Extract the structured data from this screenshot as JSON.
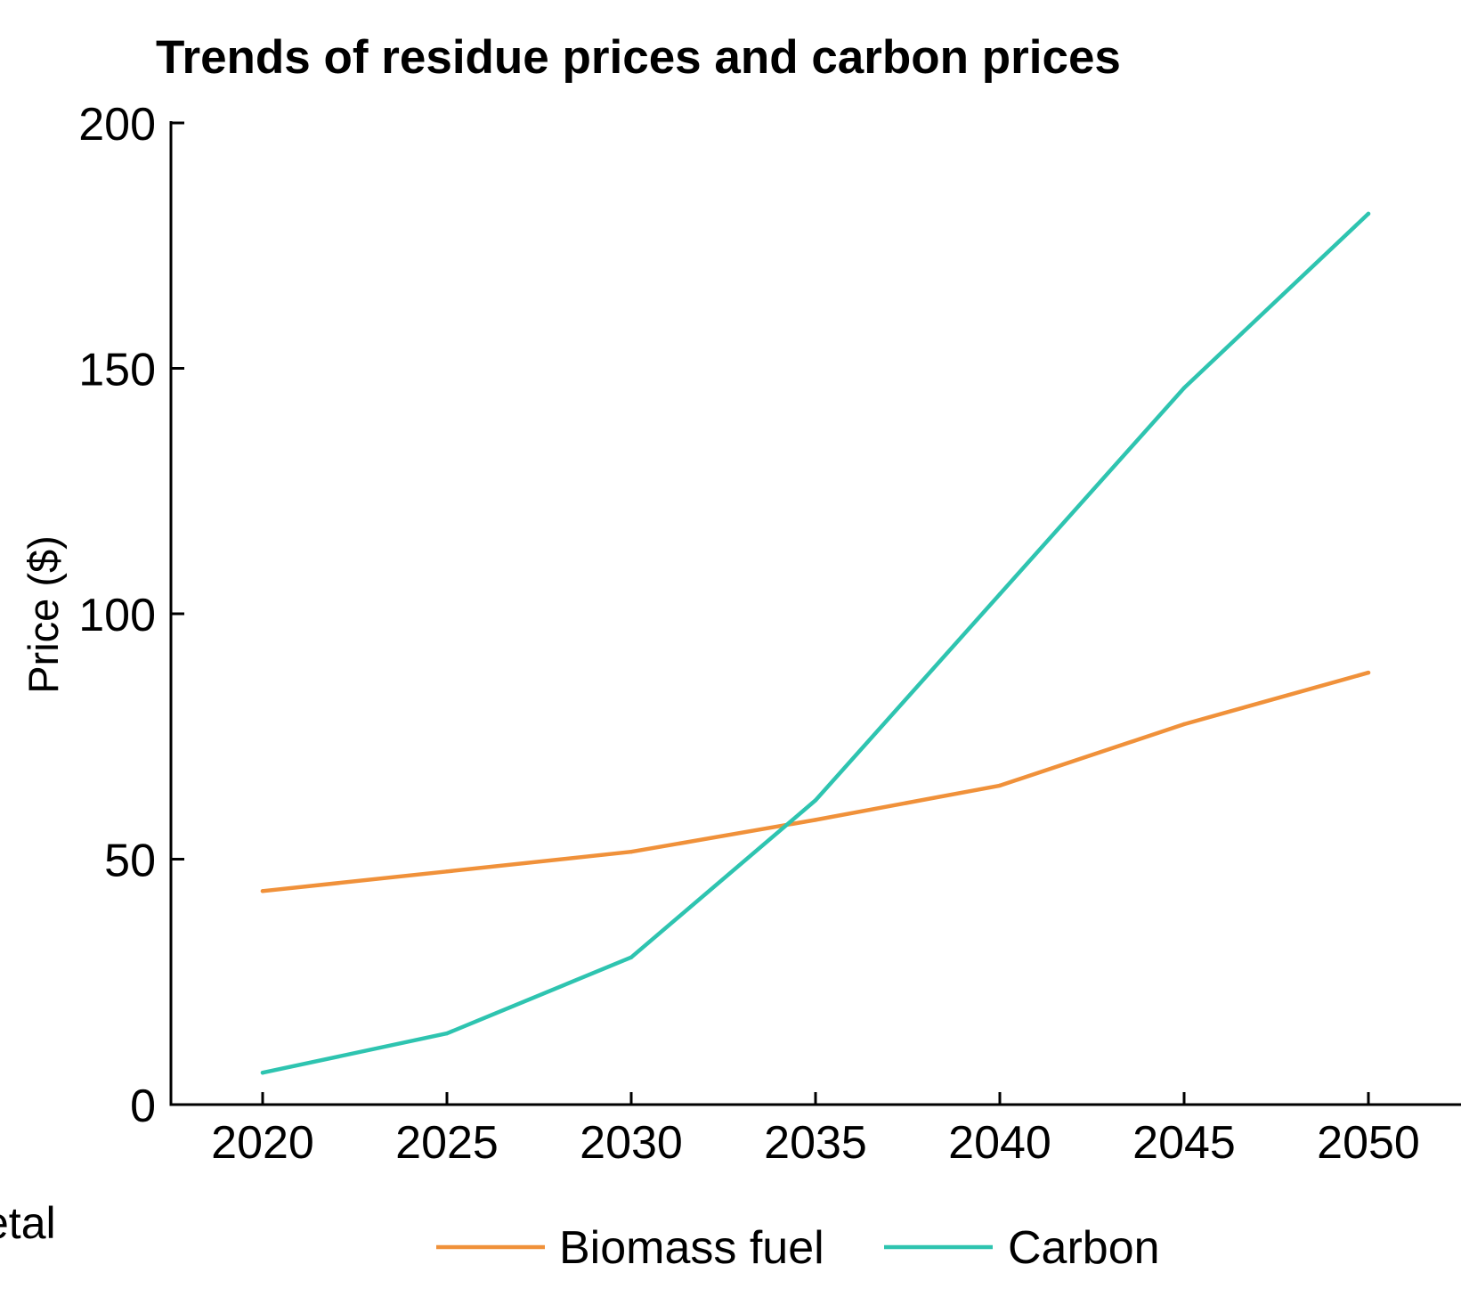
{
  "chart_data": {
    "type": "line",
    "title": "Trends of residue prices and carbon prices",
    "xlabel": "",
    "ylabel": "Price ($)",
    "x": [
      2020,
      2025,
      2030,
      2035,
      2040,
      2045,
      2050
    ],
    "x_tick_labels": [
      "2020",
      "2025",
      "2030",
      "2035",
      "2040",
      "2045",
      "2050"
    ],
    "y_ticks": [
      0,
      50,
      100,
      150,
      200
    ],
    "y_tick_labels": [
      "0",
      "50",
      "100",
      "150",
      "200"
    ],
    "xlim": [
      2017.5,
      2052.5
    ],
    "ylim": [
      0,
      200
    ],
    "grid": false,
    "legend_position": "bottom-center",
    "series": [
      {
        "name": "Biomass fuel",
        "color": "#F0913A",
        "values": [
          43.5,
          47.5,
          51.5,
          58,
          65,
          77.5,
          88
        ]
      },
      {
        "name": "Carbon",
        "color": "#2EC4B0",
        "values": [
          6.5,
          14.5,
          30,
          62,
          104,
          146,
          181.5
        ]
      }
    ],
    "clipped_side_text": "etal"
  }
}
